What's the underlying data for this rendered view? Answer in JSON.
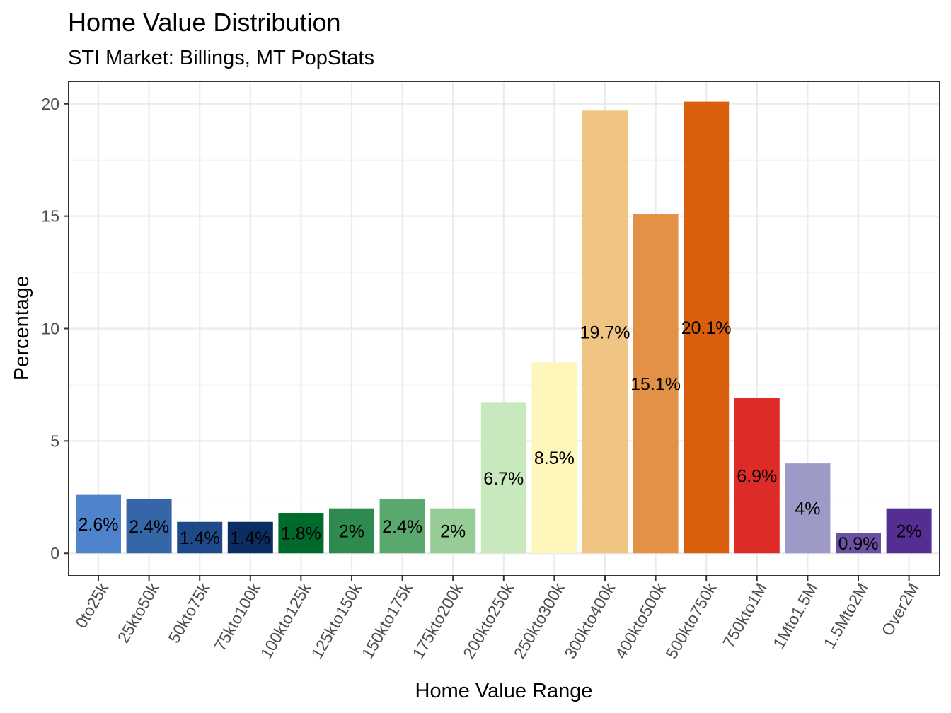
{
  "chart_data": {
    "type": "bar",
    "title": "Home Value Distribution",
    "subtitle": "STI Market: Billings, MT PopStats",
    "xlabel": "Home Value Range",
    "ylabel": "Percentage",
    "ylim": [
      -1,
      21
    ],
    "yticks": [
      0,
      5,
      10,
      15,
      20
    ],
    "grid": true,
    "categories": [
      "0to25k",
      "25kto50k",
      "50kto75k",
      "75kto100k",
      "100kto125k",
      "125kto150k",
      "150kto175k",
      "175kto200k",
      "200kto250k",
      "250kto300k",
      "300kto400k",
      "400kto500k",
      "500kto750k",
      "750kto1M",
      "1Mto1.5M",
      "1.5Mto2M",
      "Over2M"
    ],
    "values": [
      2.6,
      2.4,
      1.4,
      1.4,
      1.8,
      2.0,
      2.4,
      2.0,
      6.7,
      8.5,
      19.7,
      15.1,
      20.1,
      6.9,
      4.0,
      0.9,
      2.0
    ],
    "labels": [
      "2.6%",
      "2.4%",
      "1.4%",
      "1.4%",
      "1.8%",
      "2%",
      "2.4%",
      "2%",
      "6.7%",
      "8.5%",
      "19.7%",
      "15.1%",
      "20.1%",
      "6.9%",
      "4%",
      "0.9%",
      "2%"
    ],
    "colors": [
      "#4F83CC",
      "#3566A8",
      "#1F4A8A",
      "#0C2D62",
      "#006A2D",
      "#2E8A4F",
      "#5BA86E",
      "#96CC95",
      "#C8E8BE",
      "#FFF6BC",
      "#F0C482",
      "#E39147",
      "#D95E0E",
      "#DD2C28",
      "#9E9AC8",
      "#6A51A3",
      "#542E92"
    ]
  }
}
